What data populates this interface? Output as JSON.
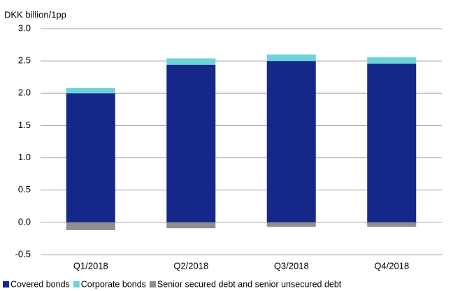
{
  "chart_data": {
    "type": "stacked_bar",
    "y_axis_label": "DKK billion/1pp",
    "categories": [
      "Q1/2018",
      "Q2/2018",
      "Q3/2018",
      "Q4/2018"
    ],
    "series": [
      {
        "name": "Covered bonds",
        "color": "#16278a",
        "values": [
          2.0,
          2.44,
          2.5,
          2.46
        ]
      },
      {
        "name": "Corporate bonds",
        "color": "#6dd3d9",
        "values": [
          0.08,
          0.1,
          0.1,
          0.1
        ]
      },
      {
        "name": "Senior secured debt and senior unsecured debt",
        "color": "#8e8e8e",
        "values": [
          -0.12,
          -0.09,
          -0.07,
          -0.07
        ]
      }
    ],
    "ylim": [
      -0.5,
      3.0
    ],
    "yticks": [
      {
        "value": 3.0,
        "label": "3.0"
      },
      2.5,
      {
        "value": 2.0,
        "label": "2.0"
      },
      1.5,
      {
        "value": 1.0,
        "label": "1.0"
      },
      0.5,
      {
        "value": 0.0,
        "label": "0.0"
      },
      -0.5
    ],
    "grid": true
  }
}
